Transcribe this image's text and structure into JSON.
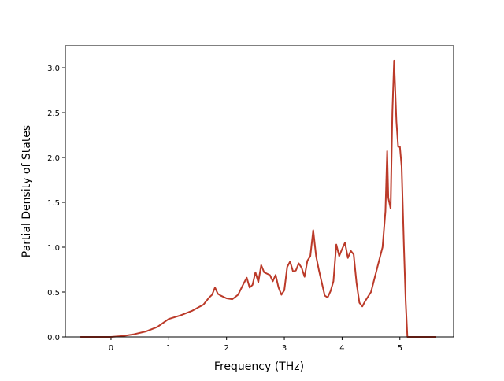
{
  "chart_data": {
    "type": "line",
    "xlabel": "Frequency (THz)",
    "ylabel": "Partial Density of States",
    "xlim": [
      -0.79,
      5.93
    ],
    "ylim": [
      0,
      3.246
    ],
    "xticks": [
      0,
      1,
      2,
      3,
      4,
      5
    ],
    "yticks": [
      {
        "value": 0,
        "label": "0.0"
      },
      {
        "value": 0.5,
        "label": "0.5"
      },
      {
        "value": 1,
        "label": "1.0"
      },
      {
        "value": 1.5,
        "label": "1.5"
      },
      {
        "value": 2,
        "label": "2.0"
      },
      {
        "value": 2.5,
        "label": "2.5"
      },
      {
        "value": 3,
        "label": "3.0"
      }
    ],
    "x": [
      -0.53,
      0,
      0.2,
      0.4,
      0.6,
      0.8,
      1.0,
      1.2,
      1.4,
      1.6,
      1.7,
      1.75,
      1.8,
      1.85,
      1.9,
      2.0,
      2.1,
      2.2,
      2.3,
      2.35,
      2.4,
      2.45,
      2.5,
      2.55,
      2.6,
      2.65,
      2.75,
      2.8,
      2.85,
      2.9,
      2.95,
      3.0,
      3.05,
      3.1,
      3.15,
      3.2,
      3.25,
      3.3,
      3.35,
      3.4,
      3.45,
      3.5,
      3.55,
      3.6,
      3.65,
      3.7,
      3.75,
      3.8,
      3.85,
      3.9,
      3.95,
      4.0,
      4.05,
      4.1,
      4.15,
      4.2,
      4.25,
      4.3,
      4.35,
      4.4,
      4.5,
      4.6,
      4.7,
      4.75,
      4.78,
      4.8,
      4.84,
      4.87,
      4.9,
      4.94,
      4.97,
      5.0,
      5.03,
      5.07,
      5.1,
      5.13,
      5.63
    ],
    "series": [
      {
        "color": "#bb3a29",
        "values": [
          0,
          0,
          0.01,
          0.03,
          0.06,
          0.11,
          0.2,
          0.24,
          0.29,
          0.36,
          0.44,
          0.47,
          0.55,
          0.48,
          0.46,
          0.43,
          0.42,
          0.47,
          0.6,
          0.66,
          0.55,
          0.58,
          0.72,
          0.61,
          0.8,
          0.72,
          0.69,
          0.62,
          0.69,
          0.55,
          0.47,
          0.52,
          0.78,
          0.84,
          0.73,
          0.74,
          0.82,
          0.77,
          0.67,
          0.85,
          0.9,
          1.19,
          0.9,
          0.74,
          0.6,
          0.46,
          0.44,
          0.51,
          0.62,
          1.03,
          0.9,
          0.98,
          1.05,
          0.88,
          0.96,
          0.92,
          0.6,
          0.38,
          0.34,
          0.4,
          0.5,
          0.75,
          1.0,
          1.4,
          2.07,
          1.55,
          1.43,
          2.5,
          3.08,
          2.4,
          2.12,
          2.12,
          1.9,
          1.0,
          0.4,
          0,
          0
        ]
      }
    ]
  }
}
